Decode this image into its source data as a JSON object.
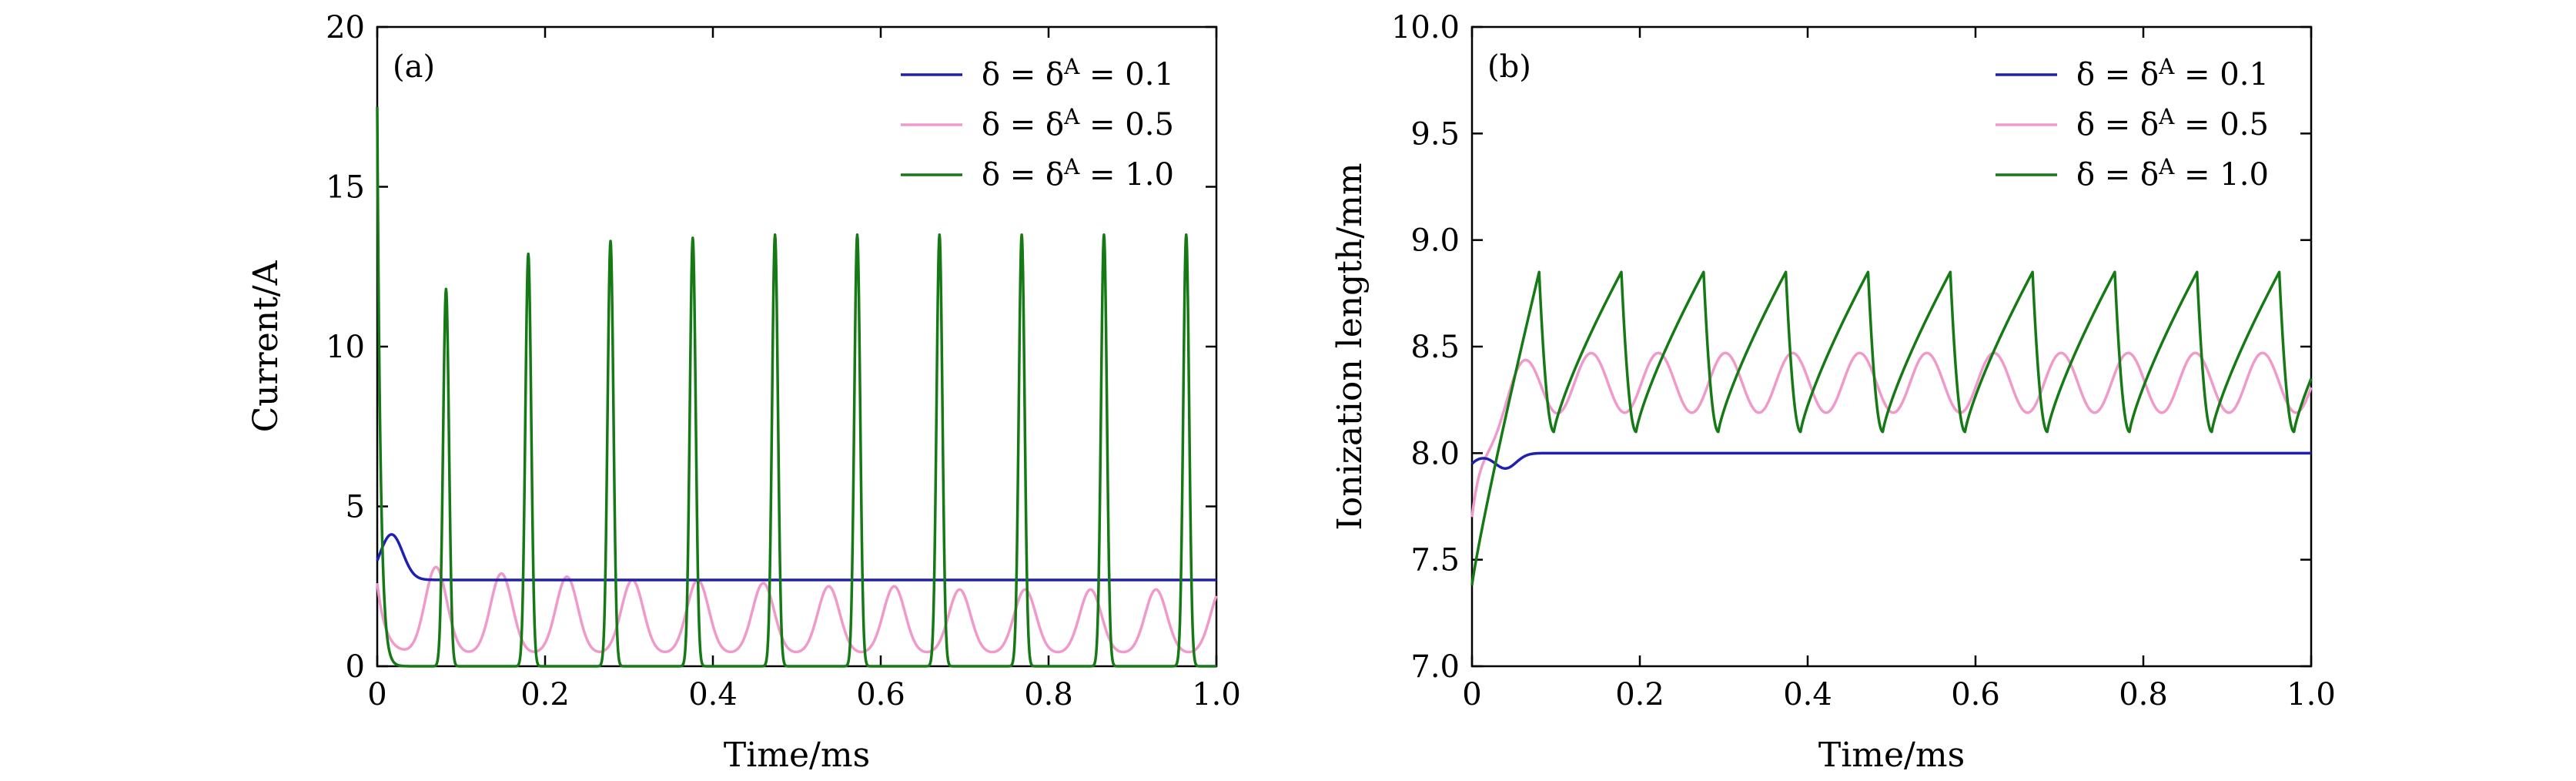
{
  "chart_data": [
    {
      "type": "line",
      "panel": "(a)",
      "xlabel": "Time/ms",
      "ylabel": "Current/A",
      "xlim": [
        0,
        1.0
      ],
      "ylim": [
        0,
        20
      ],
      "xticks": [
        "0",
        "0.2",
        "0.4",
        "0.6",
        "0.8",
        "1.0"
      ],
      "xtick_values": [
        0,
        0.2,
        0.4,
        0.6,
        0.8,
        1.0
      ],
      "yticks": [
        "0",
        "5",
        "10",
        "15",
        "20"
      ],
      "ytick_values": [
        0,
        5,
        10,
        15,
        20
      ],
      "legend_position": "top-right",
      "series": [
        {
          "name": "δ = δ^A = 0.1",
          "legend_label": "δ = δA = 0.1",
          "color": "#1f1fb4",
          "kind": "damped",
          "start": 3.3,
          "settle": 2.7,
          "first_peak": 4.0,
          "first_peak_t": 0.018
        },
        {
          "name": "δ = δ^A = 0.5",
          "legend_label": "δ = δA = 0.5",
          "color": "#f09acb",
          "kind": "pulses",
          "base": 0.4,
          "period": 0.078,
          "first_peak_t": 0.07,
          "peak_values": [
            3.1,
            2.9,
            2.8,
            2.7,
            2.7,
            2.6,
            2.5,
            2.5,
            2.4,
            2.4,
            2.4,
            2.4,
            2.4
          ],
          "width": 0.013
        },
        {
          "name": "δ = δ^A = 1.0",
          "legend_label": "δ = δA = 1.0",
          "color": "#157a15",
          "kind": "spikes",
          "base": 0.0,
          "period": 0.098,
          "first_peak_t": 0.082,
          "peak_values": [
            11.8,
            12.9,
            13.3,
            13.4,
            13.5,
            13.5,
            13.5,
            13.5,
            13.5,
            13.5
          ],
          "initial": 17.5,
          "width": 0.0035
        }
      ]
    },
    {
      "type": "line",
      "panel": "(b)",
      "xlabel": "Time/ms",
      "ylabel": "Ionization length/mm",
      "xlim": [
        0,
        1.0
      ],
      "ylim": [
        7.0,
        10.0
      ],
      "xticks": [
        "0",
        "0.2",
        "0.4",
        "0.6",
        "0.8",
        "1.0"
      ],
      "xtick_values": [
        0,
        0.2,
        0.4,
        0.6,
        0.8,
        1.0
      ],
      "yticks": [
        "7.0",
        "7.5",
        "8.0",
        "8.5",
        "9.0",
        "9.5",
        "10.0"
      ],
      "ytick_values": [
        7.0,
        7.5,
        8.0,
        8.5,
        9.0,
        9.5,
        10.0
      ],
      "legend_position": "top-right",
      "series": [
        {
          "name": "δ = δ^A = 0.1",
          "legend_label": "δ = δA = 0.1",
          "color": "#1f1fb4",
          "kind": "damped",
          "start": 7.95,
          "settle": 8.0,
          "first_peak": 7.93,
          "first_peak_t": 0.04
        },
        {
          "name": "δ = δ^A = 0.5",
          "legend_label": "δ = δA = 0.5",
          "color": "#f09acb",
          "kind": "oscillation",
          "start": 7.7,
          "mean": 8.33,
          "amp": 0.14,
          "period": 0.08,
          "first_peak_t": 0.062
        },
        {
          "name": "δ = δ^A = 1.0",
          "legend_label": "δ = δA = 1.0",
          "color": "#157a15",
          "kind": "sawtooth",
          "start": 7.38,
          "low": 8.1,
          "high": 8.85,
          "period": 0.098,
          "first_peak_t": 0.08
        }
      ]
    }
  ]
}
